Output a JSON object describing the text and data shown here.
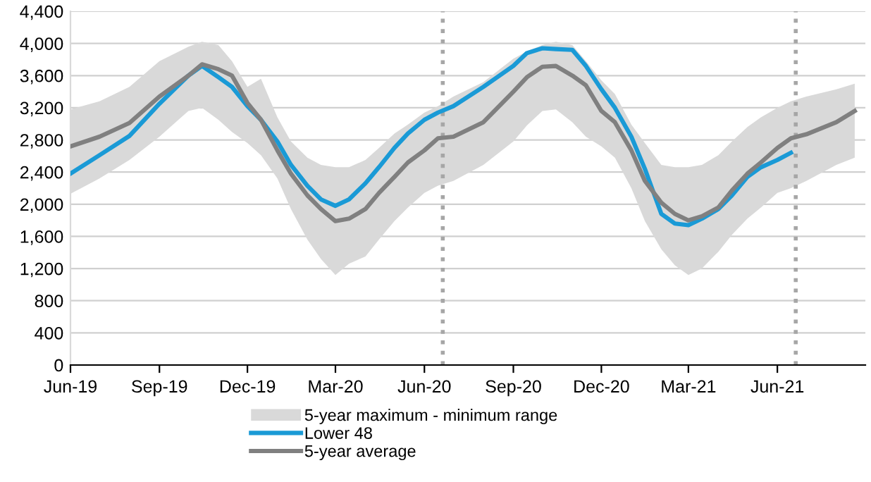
{
  "chart_data": {
    "type": "line",
    "x": [
      "2019-06-01",
      "2019-07-01",
      "2019-08-01",
      "2019-09-01",
      "2019-10-01",
      "2019-10-15",
      "2019-11-01",
      "2019-11-15",
      "2019-12-01",
      "2019-12-15",
      "2020-01-01",
      "2020-01-15",
      "2020-02-01",
      "2020-02-15",
      "2020-03-01",
      "2020-03-15",
      "2020-04-01",
      "2020-04-15",
      "2020-05-01",
      "2020-05-15",
      "2020-06-01",
      "2020-06-15",
      "2020-07-01",
      "2020-08-01",
      "2020-09-01",
      "2020-09-15",
      "2020-10-01",
      "2020-10-15",
      "2020-11-01",
      "2020-11-15",
      "2020-12-01",
      "2020-12-15",
      "2021-01-01",
      "2021-01-15",
      "2021-02-01",
      "2021-02-15",
      "2021-03-01",
      "2021-03-15",
      "2021-04-01",
      "2021-04-15",
      "2021-05-01",
      "2021-05-15",
      "2021-06-01",
      "2021-06-15",
      "2021-07-01",
      "2021-08-01",
      "2021-08-20"
    ],
    "series": [
      {
        "name": "5-year maximum - minimum range",
        "type": "area",
        "color": "#d9d9d9",
        "lower": [
          2130,
          2320,
          2550,
          2840,
          3160,
          3200,
          3050,
          2900,
          2760,
          2610,
          2320,
          1940,
          1560,
          1320,
          1120,
          1260,
          1350,
          1560,
          1790,
          1960,
          2140,
          2230,
          2290,
          2490,
          2780,
          2980,
          3160,
          3180,
          3020,
          2840,
          2720,
          2580,
          2200,
          1790,
          1440,
          1240,
          1120,
          1200,
          1410,
          1620,
          1820,
          1960,
          2140,
          2200,
          2290,
          2490,
          2580
        ],
        "upper": [
          3180,
          3280,
          3460,
          3780,
          3960,
          4020,
          3980,
          3780,
          3460,
          3560,
          3080,
          2780,
          2580,
          2490,
          2460,
          2460,
          2550,
          2700,
          2880,
          2990,
          3140,
          3220,
          3340,
          3520,
          3810,
          3900,
          3980,
          4020,
          3980,
          3780,
          3540,
          3370,
          2990,
          2760,
          2490,
          2460,
          2460,
          2490,
          2610,
          2780,
          2960,
          3080,
          3200,
          3280,
          3340,
          3430,
          3500
        ],
        "values": [
          null,
          null,
          null,
          null,
          null,
          null,
          null,
          null,
          null,
          null,
          null,
          null,
          null,
          null,
          null,
          null,
          null,
          null,
          null,
          null,
          null,
          null,
          null,
          null,
          null,
          null,
          null,
          null,
          null,
          null,
          null,
          null,
          null,
          null,
          null,
          null,
          null,
          null,
          null,
          null,
          null,
          null,
          null,
          null,
          null,
          null,
          null
        ]
      },
      {
        "name": "Lower 48",
        "color": "#1a9ad6",
        "values": [
          2380,
          2610,
          2850,
          3250,
          3600,
          3720,
          3580,
          3460,
          3220,
          3050,
          2780,
          2490,
          2230,
          2060,
          1980,
          2060,
          2260,
          2460,
          2700,
          2880,
          3050,
          3140,
          3220,
          3460,
          3720,
          3880,
          3940,
          3930,
          3920,
          3720,
          3430,
          3200,
          2840,
          2440,
          1880,
          1760,
          1740,
          1820,
          1940,
          2110,
          2340,
          2460,
          2550,
          2640,
          null,
          null,
          null
        ]
      },
      {
        "name": "5-year average",
        "color": "#808080",
        "values": [
          2720,
          2840,
          3010,
          3340,
          3600,
          3740,
          3680,
          3600,
          3260,
          3050,
          2670,
          2380,
          2110,
          1940,
          1790,
          1820,
          1940,
          2140,
          2340,
          2520,
          2670,
          2820,
          2840,
          3020,
          3400,
          3580,
          3710,
          3720,
          3600,
          3480,
          3160,
          3020,
          2670,
          2290,
          2020,
          1880,
          1800,
          1850,
          1960,
          2170,
          2380,
          2520,
          2700,
          2820,
          2870,
          3020,
          3160
        ]
      }
    ],
    "xlim": [
      "2019-06-01",
      "2021-08-31"
    ],
    "xticks": [
      {
        "value": "2019-06-01",
        "label": "Jun-19"
      },
      {
        "value": "2019-09-01",
        "label": "Sep-19"
      },
      {
        "value": "2019-12-01",
        "label": "Dec-19"
      },
      {
        "value": "2020-03-01",
        "label": "Mar-20"
      },
      {
        "value": "2020-06-01",
        "label": "Jun-20"
      },
      {
        "value": "2020-09-01",
        "label": "Sep-20"
      },
      {
        "value": "2020-12-01",
        "label": "Dec-20"
      },
      {
        "value": "2021-03-01",
        "label": "Mar-21"
      },
      {
        "value": "2021-06-01",
        "label": "Jun-21"
      }
    ],
    "ylim": [
      0,
      4400
    ],
    "yticks": [
      0,
      400,
      800,
      {
        "value": 1200,
        "label": "1,200"
      },
      {
        "value": 1600,
        "label": "1,600"
      },
      {
        "value": 2000,
        "label": "2,000"
      },
      {
        "value": 2400,
        "label": "2,400"
      },
      {
        "value": 2800,
        "label": "2,800"
      },
      {
        "value": 3200,
        "label": "3,200"
      },
      {
        "value": 3600,
        "label": "3,600"
      },
      {
        "value": 4000,
        "label": "4,000"
      },
      {
        "value": 4400,
        "label": "4,400"
      }
    ],
    "ref_lines": [
      {
        "axis": "x",
        "value": "2020-06-20",
        "color": "#a6a6a6",
        "line_style": "dotted"
      },
      {
        "axis": "x",
        "value": "2021-06-20",
        "color": "#a6a6a6",
        "line_style": "dotted"
      }
    ],
    "grid": "y",
    "legend": "bottom",
    "marker": "none",
    "line_style": "solid"
  }
}
